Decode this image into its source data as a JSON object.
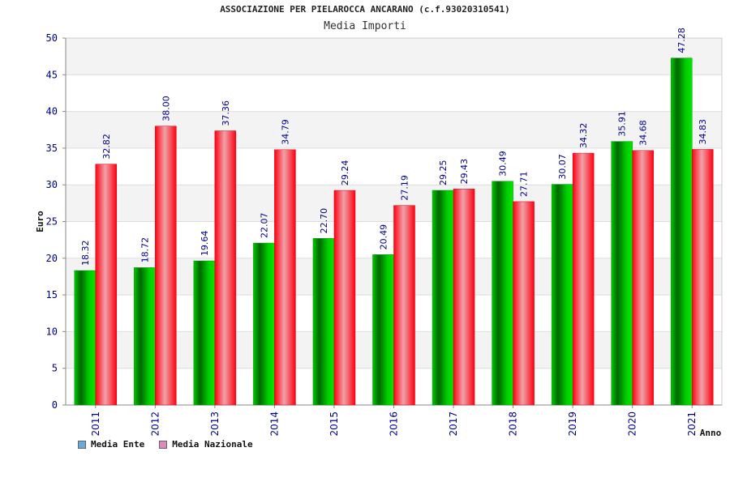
{
  "page": {
    "title": "ASSOCIAZIONE PER PIELAROCCA ANCARANO (c.f.93020310541)",
    "subtitle": "Media Importi"
  },
  "chart_data": {
    "type": "bar",
    "categories": [
      "2011",
      "2012",
      "2013",
      "2014",
      "2015",
      "2016",
      "2017",
      "2018",
      "2019",
      "2020",
      "2021"
    ],
    "series": [
      {
        "name": "Media Ente",
        "values": [
          18.32,
          18.72,
          19.64,
          22.07,
          22.7,
          20.49,
          29.25,
          30.49,
          30.07,
          35.91,
          47.28
        ],
        "labels": [
          "18.32",
          "18.72",
          "19.64",
          "22.07",
          "22.70",
          "20.49",
          "29.25",
          "30.49",
          "30.07",
          "35.91",
          "47.28"
        ],
        "color": "#00aa00",
        "legend_color": "#66aadd"
      },
      {
        "name": "Media Nazionale",
        "values": [
          32.82,
          38.0,
          37.36,
          34.79,
          29.24,
          27.19,
          29.43,
          27.71,
          34.32,
          34.68,
          34.83
        ],
        "labels": [
          "32.82",
          "38.00",
          "37.36",
          "34.79",
          "29.24",
          "27.19",
          "29.43",
          "27.71",
          "34.32",
          "34.68",
          "34.83"
        ],
        "color": "#ee0011",
        "legend_color": "#dd88bb"
      }
    ],
    "xlabel": "Anno",
    "ylabel": "Euro",
    "ylim": [
      0,
      50
    ],
    "yticks": [
      "0",
      "5",
      "10",
      "15",
      "20",
      "25",
      "30",
      "35",
      "40",
      "45",
      "50"
    ],
    "grid": true,
    "legend_position": "bottom-left"
  }
}
